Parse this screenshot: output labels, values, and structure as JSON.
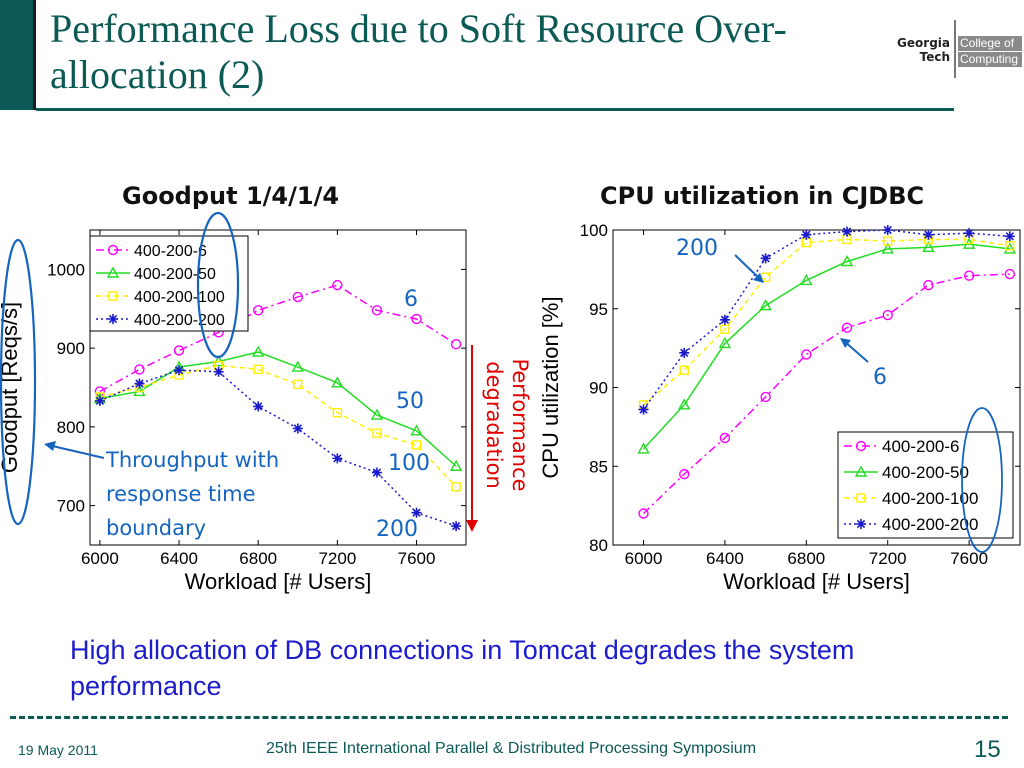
{
  "slide": {
    "title": "Performance Loss due to Soft Resource Over-allocation (2)",
    "summary": "High allocation of DB connections in Tomcat degrades the system performance",
    "footer_date": "19 May 2011",
    "footer_conference": "25th IEEE International Parallel & Distributed Processing Symposium",
    "page_number": "15"
  },
  "logo": {
    "line1": "Georgia",
    "line2": "Tech",
    "dept1": "College of",
    "dept2": "Computing"
  },
  "colors": {
    "s6": "#ff00ff",
    "s50": "#22dd22",
    "s100": "#ffee00",
    "s200": "#1a1acc",
    "accent": "#0b5a55",
    "annotation_blue": "#1565c0",
    "degradation_red": "#e00000"
  },
  "chart_data": [
    {
      "type": "line",
      "title": "Goodput  1/4/1/4",
      "xlabel": "Workload [# Users]",
      "ylabel": "Goodput [Reqs/s]",
      "xlim": [
        5950,
        7850
      ],
      "ylim": [
        650,
        1050
      ],
      "xticks": [
        6000,
        6400,
        6800,
        7200,
        7600
      ],
      "yticks": [
        700,
        800,
        900,
        1000
      ],
      "legend_position": "top-left",
      "grid": false,
      "x": [
        6000,
        6200,
        6400,
        6600,
        6800,
        7000,
        7200,
        7400,
        7600,
        7800
      ],
      "series": [
        {
          "name": "400-200-6",
          "color": "#ff00ff",
          "marker": "circle",
          "dash": "8,4,2,4",
          "values": [
            845,
            873,
            897,
            920,
            948,
            965,
            980,
            948,
            937,
            905
          ]
        },
        {
          "name": "400-200-50",
          "color": "#22dd22",
          "marker": "triangle",
          "dash": "",
          "values": [
            836,
            845,
            876,
            883,
            895,
            876,
            856,
            815,
            795,
            750
          ]
        },
        {
          "name": "400-200-100",
          "color": "#ffee00",
          "marker": "square",
          "dash": "5,4",
          "values": [
            838,
            850,
            866,
            878,
            873,
            854,
            818,
            792,
            777,
            724
          ]
        },
        {
          "name": "400-200-200",
          "color": "#1a1acc",
          "marker": "star",
          "dash": "2,3",
          "values": [
            833,
            855,
            872,
            870,
            826,
            798,
            760,
            742,
            691,
            674
          ]
        }
      ],
      "annotations": {
        "label_6": "6",
        "label_50": "50",
        "label_100": "100",
        "label_200": "200",
        "throughput_note": [
          "Throughput with",
          "response time",
          "boundary"
        ],
        "degradation_note": [
          "Performance",
          "degradation"
        ]
      }
    },
    {
      "type": "line",
      "title": "CPU utilization in CJDBC",
      "xlabel": "Workload [# Users]",
      "ylabel": "CPU utilization [%]",
      "xlim": [
        5850,
        7850
      ],
      "ylim": [
        80,
        100
      ],
      "xticks": [
        6000,
        6400,
        6800,
        7200,
        7600
      ],
      "yticks": [
        80,
        85,
        90,
        95,
        100
      ],
      "legend_position": "bottom-right",
      "grid": false,
      "x": [
        6000,
        6200,
        6400,
        6600,
        6800,
        7000,
        7200,
        7400,
        7600,
        7800
      ],
      "series": [
        {
          "name": "400-200-6",
          "color": "#ff00ff",
          "marker": "circle",
          "dash": "8,4,2,4",
          "values": [
            82.0,
            84.5,
            86.8,
            89.4,
            92.1,
            93.8,
            94.6,
            96.5,
            97.1,
            97.2
          ]
        },
        {
          "name": "400-200-50",
          "color": "#22dd22",
          "marker": "triangle",
          "dash": "",
          "values": [
            86.1,
            88.9,
            92.8,
            95.2,
            96.8,
            98.0,
            98.8,
            98.9,
            99.1,
            98.8
          ]
        },
        {
          "name": "400-200-100",
          "color": "#ffee00",
          "marker": "square",
          "dash": "5,4",
          "values": [
            88.9,
            91.1,
            93.7,
            97.0,
            99.2,
            99.4,
            99.3,
            99.4,
            99.4,
            99.0
          ]
        },
        {
          "name": "400-200-200",
          "color": "#1a1acc",
          "marker": "star",
          "dash": "2,3",
          "values": [
            88.6,
            92.2,
            94.3,
            98.2,
            99.7,
            99.9,
            100.0,
            99.7,
            99.8,
            99.6
          ]
        }
      ],
      "annotations": {
        "label_200": "200",
        "label_6": "6"
      }
    }
  ]
}
